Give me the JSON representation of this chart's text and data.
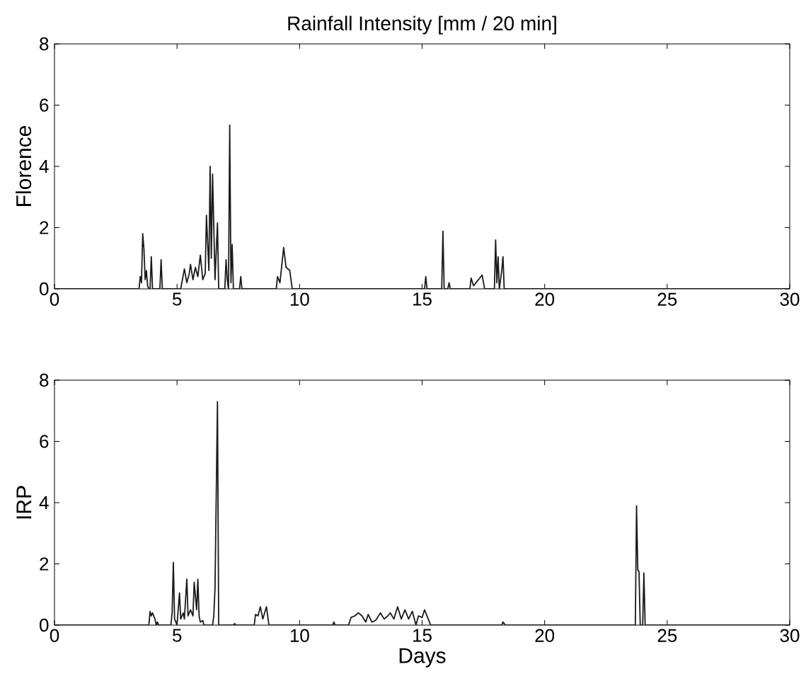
{
  "chart_data": [
    {
      "type": "line",
      "title": "Rainfall Intensity [mm / 20 min]",
      "ylabel": "Florence",
      "color": "#1a1a1a",
      "x": [
        0,
        3.45,
        3.5,
        3.55,
        3.6,
        3.65,
        3.7,
        3.75,
        3.8,
        3.85,
        3.9,
        3.95,
        4.0,
        4.3,
        4.35,
        4.4,
        5.15,
        5.3,
        5.4,
        5.5,
        5.55,
        5.65,
        5.75,
        5.85,
        5.95,
        6.05,
        6.15,
        6.2,
        6.3,
        6.35,
        6.4,
        6.45,
        6.55,
        6.65,
        6.7,
        6.95,
        7.0,
        7.05,
        7.1,
        7.15,
        7.2,
        7.25,
        7.3,
        7.55,
        7.6,
        7.65,
        9.05,
        9.1,
        9.2,
        9.35,
        9.45,
        9.6,
        9.7,
        15.1,
        15.15,
        15.2,
        15.8,
        15.85,
        15.9,
        16.05,
        16.1,
        16.15,
        16.95,
        17.0,
        17.1,
        17.45,
        17.55,
        17.95,
        18.0,
        18.05,
        18.1,
        18.15,
        18.25,
        18.3,
        18.35,
        30
      ],
      "values": [
        0,
        0,
        0.4,
        0.2,
        1.8,
        1.3,
        0.3,
        0.6,
        0.1,
        0,
        0,
        1.05,
        0,
        0,
        0.95,
        0,
        0,
        0.65,
        0.2,
        0.5,
        0.8,
        0.3,
        0.7,
        0.4,
        1.1,
        0.3,
        0.5,
        2.4,
        0.6,
        4.0,
        1.0,
        3.75,
        0.3,
        2.15,
        0,
        0,
        0.95,
        0.3,
        0,
        5.35,
        0.2,
        1.45,
        0,
        0,
        0.4,
        0,
        0,
        0.4,
        0.2,
        1.35,
        0.7,
        0.6,
        0,
        0,
        0.4,
        0,
        0,
        1.88,
        0,
        0,
        0.2,
        0,
        0,
        0.35,
        0.1,
        0.45,
        0,
        0,
        1.6,
        0.2,
        1.05,
        0,
        0.6,
        1.05,
        0,
        0
      ],
      "xlim": [
        0,
        30
      ],
      "ylim": [
        0,
        8
      ],
      "xticks": [
        0,
        5,
        10,
        15,
        20,
        25,
        30
      ],
      "yticks": [
        0,
        2,
        4,
        6,
        8
      ]
    },
    {
      "type": "line",
      "xlabel": "Days",
      "ylabel": "IRP",
      "color": "#1a1a1a",
      "x": [
        0,
        3.85,
        3.9,
        3.95,
        4.0,
        4.1,
        4.15,
        4.2,
        4.25,
        4.75,
        4.8,
        4.85,
        4.9,
        5.0,
        5.1,
        5.15,
        5.25,
        5.3,
        5.4,
        5.45,
        5.55,
        5.65,
        5.7,
        5.8,
        5.85,
        5.9,
        5.95,
        6.05,
        6.1,
        6.45,
        6.5,
        6.55,
        6.65,
        6.7,
        7.3,
        7.35,
        7.4,
        8.15,
        8.2,
        8.3,
        8.4,
        8.5,
        8.65,
        8.75,
        11.35,
        11.4,
        11.45,
        12.0,
        12.1,
        12.25,
        12.4,
        12.55,
        12.7,
        12.8,
        12.95,
        13.1,
        13.3,
        13.45,
        13.6,
        13.7,
        13.85,
        14.0,
        14.15,
        14.3,
        14.45,
        14.6,
        14.75,
        14.85,
        15.0,
        15.1,
        15.2,
        15.3,
        15.35,
        18.25,
        18.3,
        18.4,
        23.7,
        23.75,
        23.8,
        23.85,
        23.9,
        24.0,
        24.05,
        24.1,
        30
      ],
      "values": [
        0,
        0,
        0.45,
        0.3,
        0.4,
        0.2,
        0,
        0.1,
        0,
        0,
        0.4,
        2.05,
        0.2,
        0,
        1.05,
        0.2,
        0.4,
        0.2,
        1.5,
        0.3,
        0.5,
        0.3,
        1.4,
        0.5,
        1.5,
        0.3,
        0.1,
        0.15,
        0,
        0,
        0.3,
        1.2,
        7.3,
        0,
        0,
        0.05,
        0,
        0,
        0.35,
        0.3,
        0.6,
        0.2,
        0.6,
        0,
        0,
        0.1,
        0,
        0,
        0.25,
        0.3,
        0.4,
        0.3,
        0.1,
        0.35,
        0.1,
        0.15,
        0.4,
        0.2,
        0.3,
        0.4,
        0.2,
        0.6,
        0.2,
        0.5,
        0.2,
        0.45,
        0,
        0.3,
        0.25,
        0.5,
        0.3,
        0.1,
        0,
        0,
        0.1,
        0,
        0,
        3.9,
        1.8,
        1.75,
        0,
        0,
        1.7,
        0,
        0
      ],
      "xlim": [
        0,
        30
      ],
      "ylim": [
        0,
        8
      ],
      "xticks": [
        0,
        5,
        10,
        15,
        20,
        25,
        30
      ],
      "yticks": [
        0,
        2,
        4,
        6,
        8
      ]
    }
  ]
}
